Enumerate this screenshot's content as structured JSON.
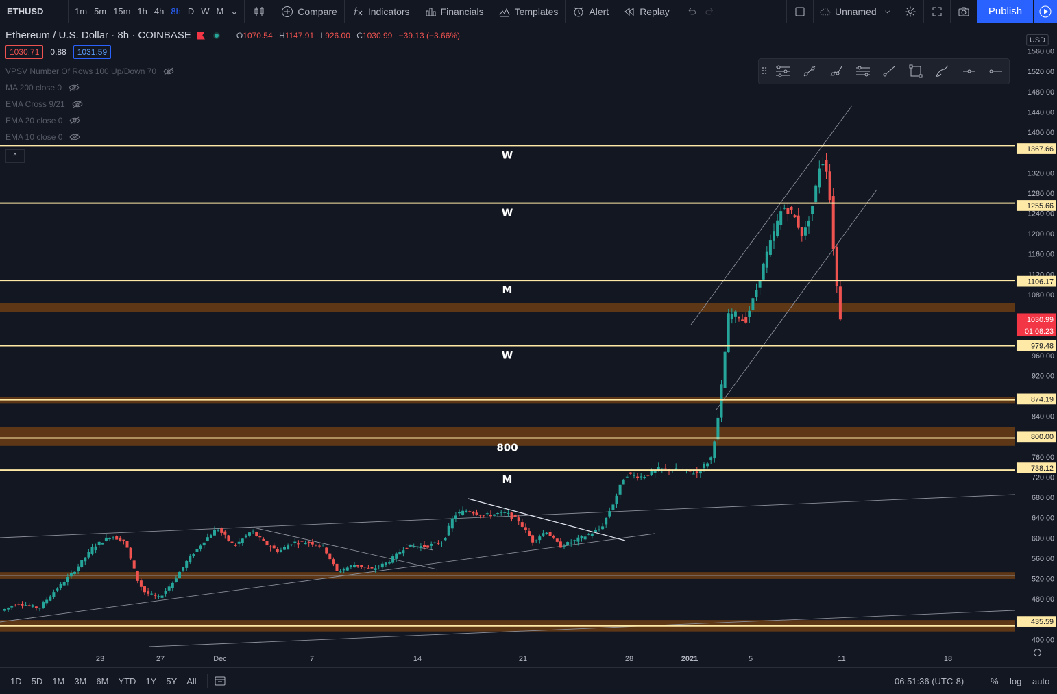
{
  "toolbar": {
    "symbol": "ETHUSD",
    "intervals": [
      "1m",
      "5m",
      "15m",
      "1h",
      "4h",
      "8h",
      "D",
      "W",
      "M"
    ],
    "active_interval": "8h",
    "compare": "Compare",
    "indicators": "Indicators",
    "financials": "Financials",
    "templates": "Templates",
    "alert": "Alert",
    "replay": "Replay",
    "layout_name": "Unnamed",
    "publish": "Publish"
  },
  "legend": {
    "title": "Ethereum / U.S. Dollar · 8h · COINBASE",
    "o_label": "O",
    "o": "1070.54",
    "h_label": "H",
    "h": "1147.91",
    "l_label": "L",
    "l": "926.00",
    "c_label": "C",
    "c": "1030.99",
    "change": "−39.13 (−3.66%)",
    "bid": "1030.71",
    "spread": "0.88",
    "ask": "1031.59",
    "indicators": [
      "VPSV Number Of Rows 100 Up/Down 70",
      "MA 200 close 0",
      "EMA Cross 9/21",
      "EMA 20 close 0",
      "EMA 10 close 0"
    ]
  },
  "colors": {
    "background": "#131722",
    "up": "#26a69a",
    "down": "#ef5350",
    "level_line": "#ffe9a6",
    "zone": "#6b3d14",
    "accent": "#2962ff"
  },
  "chart_data": {
    "type": "candlestick",
    "symbol": "ETHUSD",
    "interval": "8h",
    "exchange": "COINBASE",
    "y_ticks": [
      400,
      440,
      480,
      520,
      560,
      600,
      640,
      680,
      720,
      760,
      800,
      840,
      880,
      920,
      960,
      1000,
      1040,
      1080,
      1120,
      1160,
      1200,
      1240,
      1280,
      1320,
      1360,
      1400,
      1440,
      1480,
      1520,
      1560
    ],
    "y_tick_labels": [
      "400.00",
      "",
      "480.00",
      "520.00",
      "560.00",
      "600.00",
      "640.00",
      "680.00",
      "720.00",
      "760.00",
      "800.00",
      "840.00",
      "",
      "920.00",
      "960.00",
      "",
      "",
      "1080.00",
      "1120.00",
      "1160.00",
      "1200.00",
      "1240.00",
      "1280.00",
      "1320.00",
      "",
      "1400.00",
      "1440.00",
      "1480.00",
      "1520.00",
      "1560.00"
    ],
    "x_ticks": [
      "23",
      "27",
      "Dec",
      "7",
      "14",
      "21",
      "28",
      "2021",
      "5",
      "11",
      "18"
    ],
    "currency": "USD",
    "levels": [
      {
        "price": 1367.66,
        "label": "1367.66",
        "mark": "W"
      },
      {
        "price": 1255.66,
        "label": "1255.66",
        "mark": "W"
      },
      {
        "price": 1106.17,
        "label": "1106.17",
        "mark": "M"
      },
      {
        "price": 979.48,
        "label": "979.48",
        "mark": "W"
      },
      {
        "price": 874.19,
        "label": "874.19",
        "mark": ""
      },
      {
        "price": 800.0,
        "label": "800.00",
        "mark": "800"
      },
      {
        "price": 738.12,
        "label": "738.12",
        "mark": "M"
      },
      {
        "price": 435.59,
        "label": "435.59",
        "mark": ""
      }
    ],
    "zones": [
      {
        "from": 1045,
        "to": 1062
      },
      {
        "from": 868,
        "to": 880
      },
      {
        "from": 785,
        "to": 821
      },
      {
        "from": 527,
        "to": 540
      },
      {
        "from": 425,
        "to": 447
      }
    ],
    "last_price": "1030.99",
    "countdown": "01:08:23"
  },
  "bottom": {
    "ranges": [
      "1D",
      "5D",
      "1M",
      "3M",
      "6M",
      "YTD",
      "1Y",
      "5Y",
      "All"
    ],
    "time": "06:51:36 (UTC-8)",
    "percent": "%",
    "log": "log",
    "auto": "auto"
  }
}
